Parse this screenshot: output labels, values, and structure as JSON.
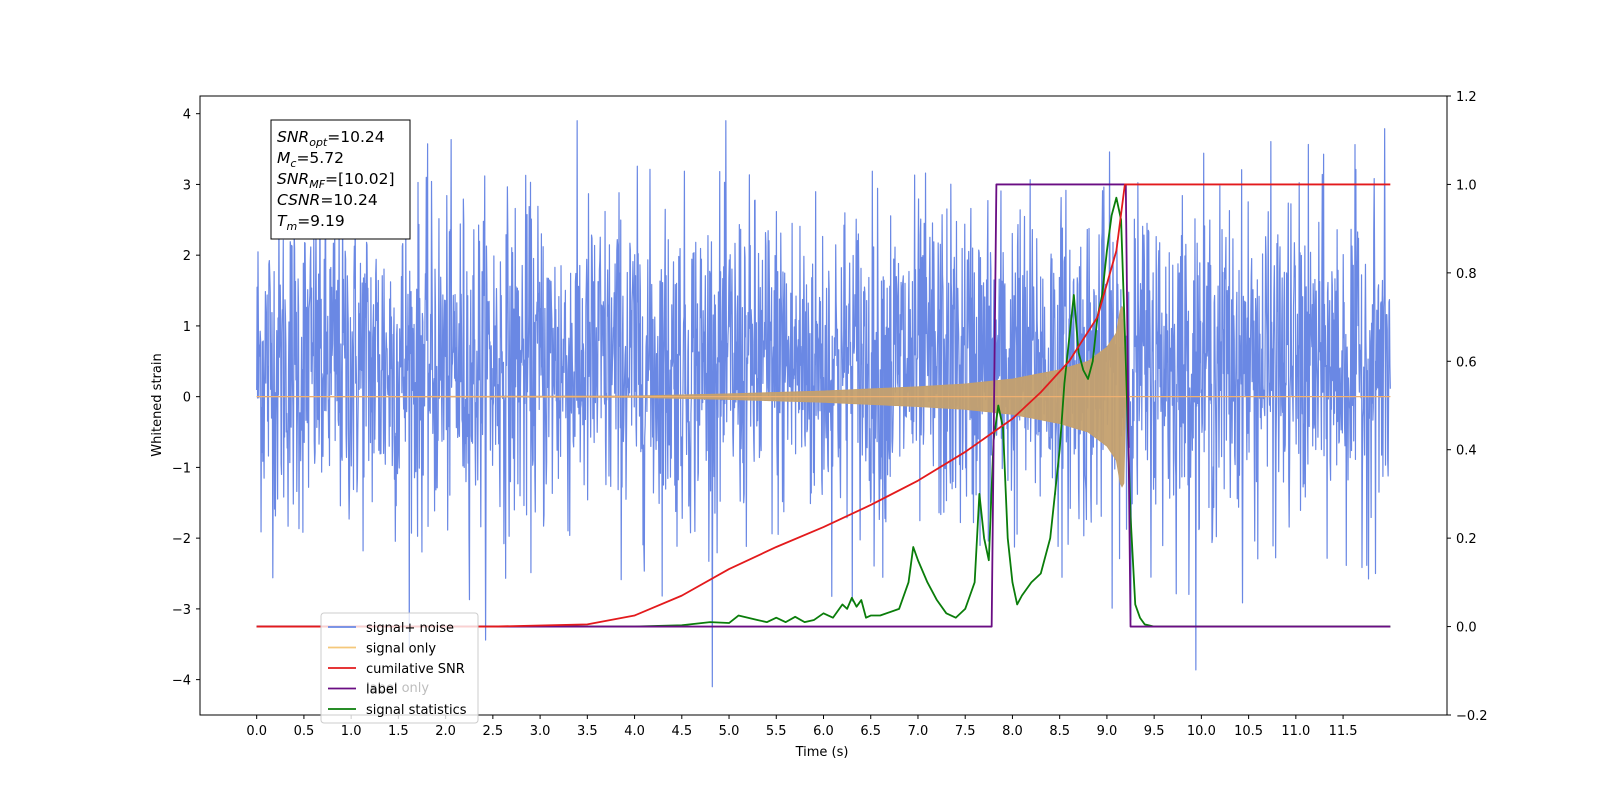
{
  "chart_data": {
    "type": "line",
    "xlabel": "Time (s)",
    "ylabel": "Whitened strain",
    "xlim": [
      -0.6,
      12.6
    ],
    "ylim": [
      -4.5,
      4.25
    ],
    "ylim_right": [
      -0.2,
      1.2
    ],
    "x_ticks": [
      "0.0",
      "0.5",
      "1.0",
      "1.5",
      "2.0",
      "2.5",
      "3.0",
      "3.5",
      "4.0",
      "4.5",
      "5.0",
      "5.5",
      "6.0",
      "6.5",
      "7.0",
      "7.5",
      "8.0",
      "8.5",
      "9.0",
      "9.5",
      "10.0",
      "10.5",
      "11.0",
      "11.5"
    ],
    "y_ticks": [
      "4",
      "3",
      "2",
      "1",
      "0",
      "−1",
      "−2",
      "−3",
      "−4"
    ],
    "y_ticks_right": [
      "1.2",
      "1.0",
      "0.8",
      "0.6",
      "0.4",
      "0.2",
      "0.0",
      "−0.2"
    ],
    "info_box": [
      {
        "main": "SNR",
        "sub": "opt",
        "rest": "=10.24"
      },
      {
        "main": "M",
        "sub": "c",
        "rest": "=5.72"
      },
      {
        "main": "SNR",
        "sub": "MF",
        "rest": "=[10.02]"
      },
      {
        "main": "CSNR",
        "sub": "",
        "rest": "=10.24"
      },
      {
        "main": "T",
        "sub": "m",
        "rest": "=9.19"
      }
    ],
    "legend": {
      "placement": "lower-left",
      "entries": [
        {
          "label": "signal+ noise",
          "color": "#6a88e4"
        },
        {
          "label": "signal only",
          "color": "#f5c87a"
        },
        {
          "label": "cumilative SNR",
          "color": "#e31a1c"
        },
        {
          "label": "label",
          "color": "#6a0d83"
        },
        {
          "label": "signal statistics",
          "color": "#0a7d0a"
        }
      ],
      "ghost_text": "label only"
    },
    "series": [
      {
        "name": "signal+ noise",
        "axis": "left",
        "color": "#6a88e4",
        "x_range": [
          0.0,
          12.0
        ],
        "typical_range": [
          -1.4,
          2.3
        ],
        "extreme_range": [
          -4.1,
          3.9
        ]
      },
      {
        "name": "signal only",
        "axis": "left",
        "color": "#c4a06e",
        "envelope": {
          "x": [
            0.0,
            4.0,
            5.0,
            6.0,
            7.0,
            7.5,
            8.0,
            8.5,
            8.8,
            9.0,
            9.1,
            9.15,
            9.19,
            9.2,
            12.0
          ],
          "amplitude": [
            0.0,
            0.01,
            0.04,
            0.08,
            0.14,
            0.18,
            0.25,
            0.38,
            0.5,
            0.7,
            0.9,
            1.3,
            1.2,
            0.0,
            0.0
          ]
        }
      },
      {
        "name": "cumilative SNR",
        "axis": "right",
        "color": "#e31a1c",
        "x": [
          0.0,
          2.5,
          3.5,
          4.0,
          4.5,
          5.0,
          5.5,
          6.0,
          6.5,
          7.0,
          7.5,
          7.8,
          8.0,
          8.3,
          8.6,
          8.9,
          9.1,
          9.19,
          9.2,
          12.0
        ],
        "y": [
          0.0,
          0.0,
          0.005,
          0.025,
          0.07,
          0.13,
          0.18,
          0.225,
          0.275,
          0.33,
          0.395,
          0.44,
          0.47,
          0.53,
          0.6,
          0.7,
          0.85,
          1.0,
          1.0,
          1.0
        ]
      },
      {
        "name": "label",
        "axis": "right",
        "color": "#6a0d83",
        "x": [
          0.0,
          7.78,
          7.83,
          9.2,
          9.25,
          12.0
        ],
        "y": [
          0.0,
          0.0,
          1.0,
          1.0,
          0.0,
          0.0
        ]
      },
      {
        "name": "signal statistics",
        "axis": "right",
        "color": "#0a7d0a",
        "x": [
          0.0,
          4.0,
          4.5,
          4.8,
          5.0,
          5.1,
          5.3,
          5.4,
          5.5,
          5.6,
          5.7,
          5.8,
          5.9,
          6.0,
          6.1,
          6.15,
          6.2,
          6.25,
          6.3,
          6.35,
          6.4,
          6.45,
          6.5,
          6.6,
          6.8,
          6.9,
          6.95,
          7.0,
          7.1,
          7.15,
          7.2,
          7.3,
          7.4,
          7.5,
          7.55,
          7.6,
          7.65,
          7.7,
          7.75,
          7.8,
          7.85,
          7.9,
          7.95,
          8.0,
          8.05,
          8.1,
          8.2,
          8.3,
          8.4,
          8.5,
          8.55,
          8.6,
          8.65,
          8.7,
          8.75,
          8.8,
          8.85,
          8.9,
          8.95,
          9.0,
          9.05,
          9.1,
          9.15,
          9.2,
          9.25,
          9.3,
          9.35,
          9.4,
          9.5,
          9.6,
          9.7,
          12.0
        ],
        "y": [
          0.0,
          0.0,
          0.003,
          0.01,
          0.008,
          0.025,
          0.015,
          0.01,
          0.02,
          0.01,
          0.022,
          0.01,
          0.015,
          0.03,
          0.02,
          0.035,
          0.05,
          0.04,
          0.065,
          0.045,
          0.06,
          0.02,
          0.025,
          0.025,
          0.04,
          0.1,
          0.18,
          0.15,
          0.1,
          0.08,
          0.06,
          0.03,
          0.02,
          0.04,
          0.07,
          0.1,
          0.3,
          0.2,
          0.15,
          0.42,
          0.5,
          0.45,
          0.2,
          0.1,
          0.05,
          0.07,
          0.1,
          0.12,
          0.2,
          0.4,
          0.55,
          0.65,
          0.75,
          0.62,
          0.58,
          0.56,
          0.6,
          0.7,
          0.75,
          0.85,
          0.93,
          0.97,
          0.92,
          0.6,
          0.25,
          0.05,
          0.02,
          0.005,
          0.0,
          0.0,
          0.0,
          0.0
        ]
      }
    ]
  }
}
